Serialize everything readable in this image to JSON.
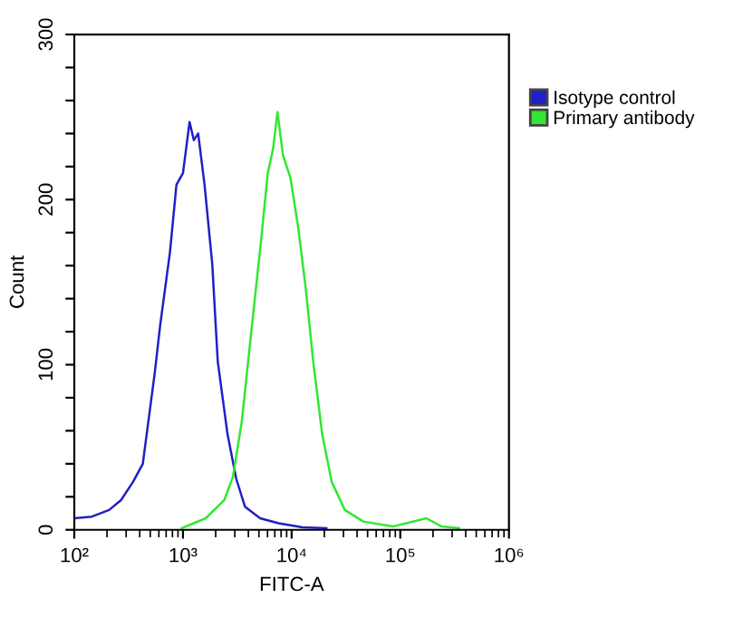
{
  "chart_data": {
    "type": "line",
    "xlabel": "FITC-A",
    "ylabel": "Count",
    "log": "x",
    "legend": "right",
    "grid": false,
    "marker": "none",
    "line_style": "solid",
    "xlim": [
      100,
      1000000
    ],
    "ylim": [
      0,
      300
    ],
    "xticks": [
      {
        "value": 100,
        "label": "10²"
      },
      {
        "value": 1000,
        "label": "10³"
      },
      {
        "value": 10000,
        "label": "10⁴"
      },
      {
        "value": 100000,
        "label": "10⁵"
      },
      {
        "value": 1000000,
        "label": "10⁶"
      }
    ],
    "yticks": [
      0,
      {
        "value": 20,
        "label": null
      },
      {
        "value": 40,
        "label": null
      },
      {
        "value": 60,
        "label": null
      },
      {
        "value": 80,
        "label": null
      },
      100,
      {
        "value": 120,
        "label": null
      },
      {
        "value": 140,
        "label": null
      },
      {
        "value": 160,
        "label": null
      },
      {
        "value": 180,
        "label": null
      },
      200,
      {
        "value": 220,
        "label": null
      },
      {
        "value": 240,
        "label": null
      },
      {
        "value": 260,
        "label": null
      },
      {
        "value": 280,
        "label": null
      },
      300
    ],
    "series": [
      {
        "name": "Isotype control",
        "color": "#2020c8",
        "x": [
          100,
          145,
          209,
          269,
          347,
          427,
          479,
          550,
          617,
          759,
          871,
          1000,
          1150,
          1260,
          1380,
          1580,
          1860,
          2090,
          2570,
          3090,
          3720,
          5130,
          7590,
          12600,
          20900
        ],
        "values": [
          7,
          8,
          12,
          18,
          29,
          40,
          65,
          95,
          124,
          168,
          209,
          216,
          247,
          236,
          240,
          209,
          161,
          102,
          58,
          31,
          14,
          7,
          4,
          1.5,
          1
        ]
      },
      {
        "name": "Primary antibody",
        "color": "#33e633",
        "x": [
          977,
          1620,
          2400,
          2880,
          3470,
          3980,
          4570,
          5250,
          6030,
          6760,
          7410,
          8320,
          9770,
          11500,
          13500,
          15800,
          19100,
          23400,
          30900,
          45700,
          85100,
          174000,
          240000,
          347000
        ],
        "values": [
          1,
          7,
          18,
          32,
          65,
          102,
          139,
          176,
          216,
          231,
          253,
          227,
          213,
          183,
          146,
          102,
          58,
          29,
          12,
          5,
          2,
          7,
          2,
          1
        ]
      }
    ]
  }
}
